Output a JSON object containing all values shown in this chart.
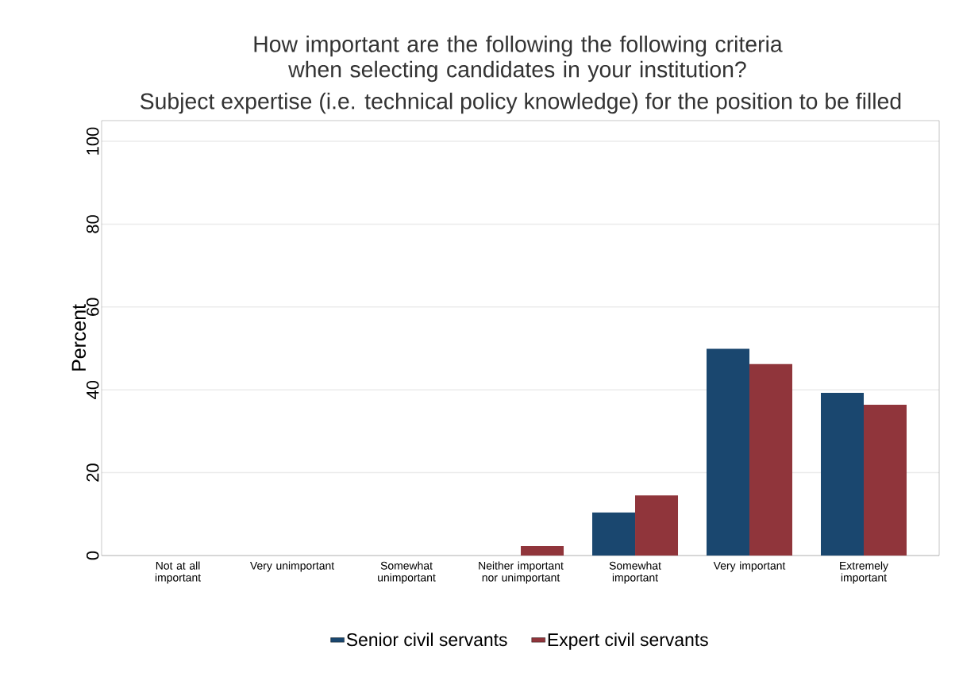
{
  "chart_data": {
    "type": "bar",
    "title": "How important are the following the following criteria when selecting candidates in your institution?",
    "subtitle": "Subject expertise (i.e. technical policy knowledge) for the position to be filled",
    "ylabel": "Percent",
    "categories": [
      "Not at all important",
      "Very unimportant",
      "Somewhat unimportant",
      "Neither important nor unimportant",
      "Somewhat important",
      "Very important",
      "Extremely important"
    ],
    "series": [
      {
        "name": "Senior civil servants",
        "color": "#1a476f",
        "values": [
          0,
          0,
          0,
          0,
          10.4,
          49.9,
          39.3
        ]
      },
      {
        "name": "Expert civil servants",
        "color": "#90353b",
        "values": [
          0,
          0,
          0,
          2.3,
          14.5,
          46.2,
          36.4
        ]
      }
    ],
    "ylim": [
      0,
      105
    ],
    "yticks": [
      0,
      20,
      40,
      60,
      80,
      100
    ],
    "grid": "y",
    "legend": "bottom"
  }
}
